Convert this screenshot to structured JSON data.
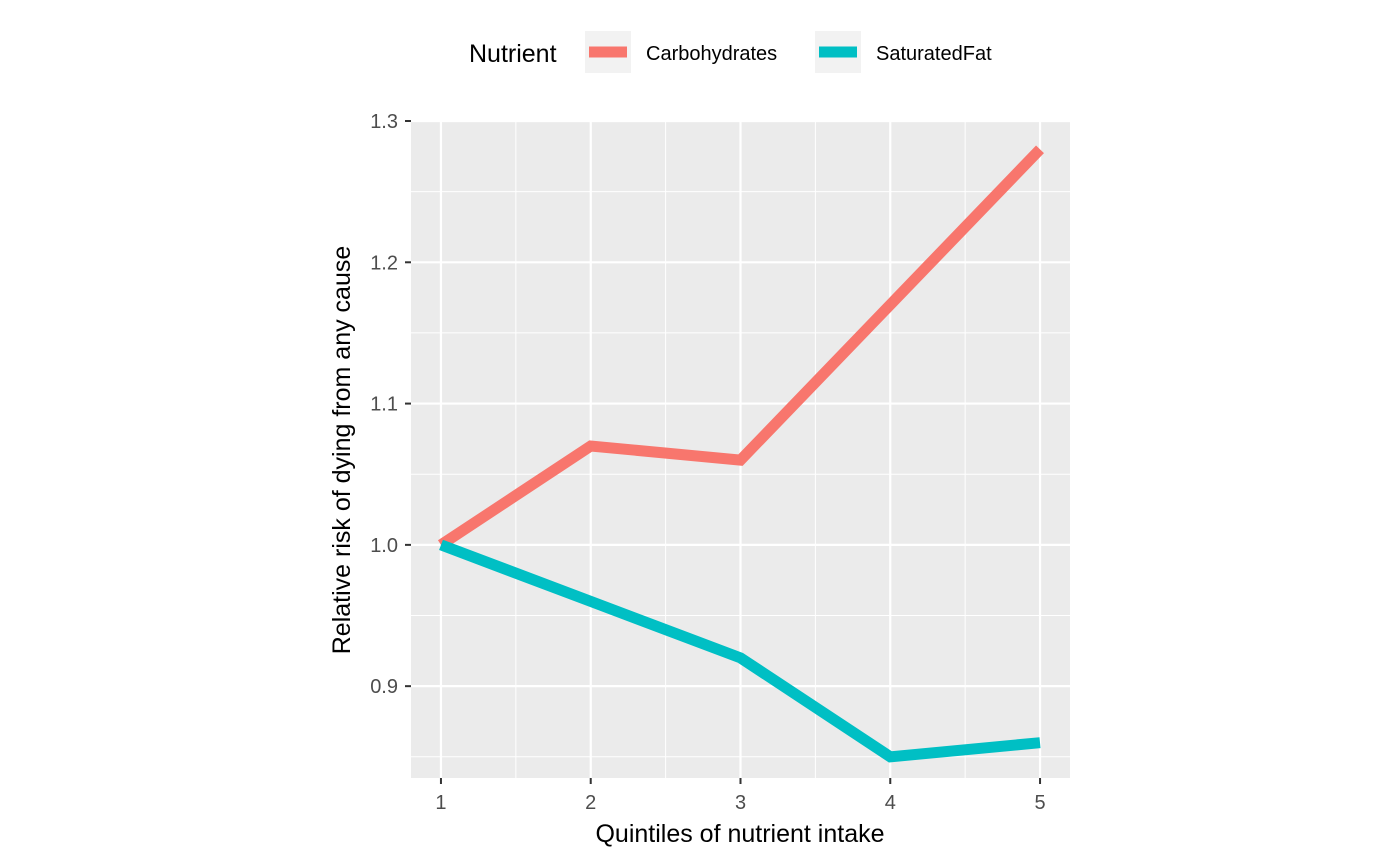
{
  "chart_data": {
    "type": "line",
    "xlabel": "Quintiles of nutrient intake",
    "ylabel": "Relative risk of dying from any cause",
    "x": [
      1,
      2,
      3,
      4,
      5
    ],
    "xticks": [
      "1",
      "2",
      "3",
      "4",
      "5"
    ],
    "xlim": [
      0.8,
      5.2
    ],
    "yticks": [
      "0.9",
      "1.0",
      "1.1",
      "1.2",
      "1.3"
    ],
    "ylim": [
      0.835,
      1.3
    ],
    "grid": true,
    "legend": {
      "title": "Nutrient",
      "placement": "top"
    },
    "series": [
      {
        "name": "Carbohydrates",
        "color": "#F8766D",
        "values": [
          1.0,
          1.07,
          1.06,
          1.17,
          1.28
        ]
      },
      {
        "name": "SaturatedFat",
        "color": "#00BFC4",
        "values": [
          1.0,
          0.96,
          0.92,
          0.85,
          0.86
        ]
      }
    ],
    "colors": {
      "panel": "#EBEBEB",
      "grid": "#FFFFFF",
      "tick": "#333333"
    }
  }
}
